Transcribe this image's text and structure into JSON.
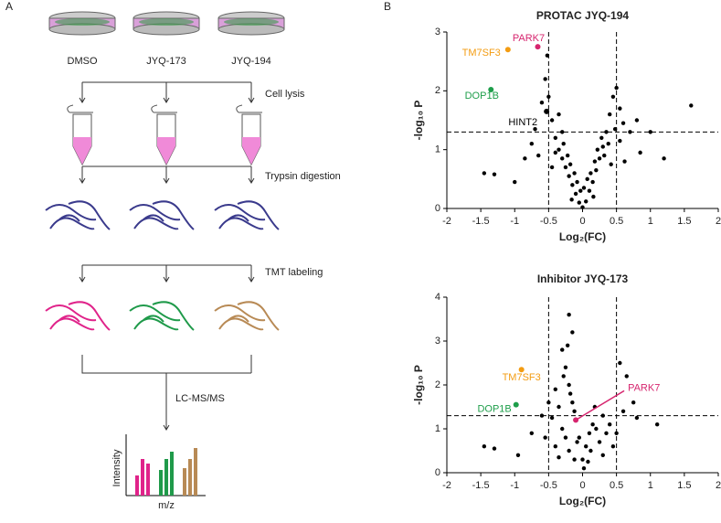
{
  "panel_labels": [
    "A",
    "B"
  ],
  "workflow": {
    "treatments": [
      "DMSO",
      "JYQ-173",
      "JYQ-194"
    ],
    "steps": [
      "Cell lysis",
      "Trypsin digestion",
      "TMT labeling",
      "LC-MS/MS"
    ],
    "axis_labels": [
      "Intensity",
      "m/z"
    ]
  },
  "chart_data": [
    {
      "type": "scatter",
      "title": "PROTAC JYQ-194",
      "x_label": "Log₂(FC)",
      "y_label": "-log₁₀ P",
      "color": "#000000",
      "x": [
        -1.45,
        -1.3,
        -1.0,
        -0.85,
        -0.6,
        -0.55,
        -0.5,
        -0.45,
        -0.4,
        -0.35,
        -0.3,
        -0.25,
        -0.2,
        -0.15,
        -0.1,
        -0.05,
        0,
        0.05,
        0.1,
        0.15,
        0.2,
        0.25,
        0.3,
        0.35,
        0.4,
        0.45,
        0.5,
        0.55,
        0.6,
        0.7,
        0.8,
        1.0,
        1.2,
        1.6,
        0.85,
        -0.7,
        -0.75,
        -0.65,
        -0.35,
        -0.3,
        -0.28,
        -0.22,
        -0.18,
        -0.12,
        -0.08,
        -0.03,
        0.02,
        0.07,
        0.12,
        0.18,
        0.22,
        0.28,
        0.32,
        0.38,
        0.42,
        0.16,
        -0.16,
        0.55,
        -0.45,
        -0.52,
        0.48,
        0.62,
        -0.4
      ],
      "values": [
        0.6,
        0.58,
        0.45,
        0.85,
        1.8,
        2.2,
        1.9,
        1.5,
        1.2,
        1.0,
        0.85,
        0.7,
        0.55,
        0.4,
        0.25,
        0.1,
        0.02,
        0.12,
        0.3,
        0.45,
        0.65,
        0.85,
        1.05,
        1.3,
        1.6,
        1.9,
        2.05,
        1.7,
        1.45,
        1.3,
        1.5,
        1.3,
        0.85,
        1.75,
        0.95,
        1.35,
        1.1,
        0.9,
        1.6,
        1.3,
        1.1,
        0.9,
        0.75,
        0.6,
        0.45,
        0.3,
        0.35,
        0.5,
        0.6,
        0.8,
        1.0,
        1.2,
        0.9,
        1.1,
        0.75,
        0.2,
        0.15,
        1.15,
        0.7,
        2.6,
        1.35,
        0.8,
        0.95
      ],
      "xlim": [
        -2,
        2
      ],
      "xticks": [
        -2,
        -1.5,
        -1,
        -0.5,
        0,
        0.5,
        1,
        1.5,
        2
      ],
      "ylim": [
        0,
        3
      ],
      "yticks": [
        0,
        1,
        2,
        3
      ],
      "thresholds": {
        "x": [
          -0.5,
          0.5
        ],
        "y": 1.3
      },
      "annotations": [
        {
          "text": "PARK7",
          "x": -0.66,
          "y": 2.75,
          "color": "#d6246e"
        },
        {
          "text": "TM7SF3",
          "x": -1.1,
          "y": 2.7,
          "color": "#f39c12"
        },
        {
          "text": "DOP1B",
          "x": -1.35,
          "y": 2.02,
          "color": "#1e9e4a"
        },
        {
          "text": "HINT2",
          "x": -0.53,
          "y": 1.65,
          "color": "#000000"
        }
      ]
    },
    {
      "type": "scatter",
      "title": "Inhibitor JYQ-173",
      "x_label": "Log₂(FC)",
      "y_label": "-log₁₀ P",
      "color": "#000000",
      "x": [
        -0.2,
        -0.15,
        -0.3,
        -0.25,
        -0.2,
        -0.15,
        -0.1,
        -0.05,
        0,
        0.05,
        0.1,
        0.15,
        0.2,
        0.3,
        0.4,
        0.5,
        0.6,
        0.65,
        0.75,
        0.8,
        1.1,
        -1.45,
        -1.3,
        -0.95,
        -0.75,
        -0.6,
        -0.5,
        -0.45,
        -0.4,
        -0.35,
        -0.3,
        -0.25,
        -0.2,
        -0.12,
        0.02,
        0.08,
        0.12,
        0.25,
        0.35,
        0.45,
        -0.4,
        -0.55,
        -0.22,
        -0.28,
        -0.18,
        -0.12,
        0.18,
        0.55,
        -0.35,
        0.3,
        -0.08
      ],
      "values": [
        3.6,
        3.2,
        2.8,
        2.4,
        2.0,
        1.6,
        1.2,
        0.8,
        0.3,
        0.6,
        0.9,
        1.1,
        1.0,
        1.3,
        1.1,
        0.9,
        1.4,
        2.2,
        1.6,
        1.25,
        1.1,
        0.6,
        0.55,
        0.4,
        0.9,
        1.3,
        1.6,
        1.25,
        1.9,
        1.5,
        1.0,
        0.8,
        0.5,
        0.3,
        0.1,
        0.25,
        0.5,
        0.7,
        0.9,
        0.6,
        0.6,
        0.8,
        2.9,
        2.2,
        1.8,
        1.4,
        1.5,
        2.5,
        0.35,
        0.4,
        0.7
      ],
      "xlim": [
        -2,
        2
      ],
      "xticks": [
        -2,
        -1.5,
        -1,
        -0.5,
        0,
        0.5,
        1,
        1.5,
        2
      ],
      "ylim": [
        0,
        4
      ],
      "yticks": [
        0,
        1,
        2,
        3,
        4
      ],
      "thresholds": {
        "x": [
          -0.5,
          0.5
        ],
        "y": 1.3
      },
      "annotations": [
        {
          "text": "TM7SF3",
          "x": -0.9,
          "y": 2.35,
          "color": "#f39c12"
        },
        {
          "text": "DOP1B",
          "x": -0.98,
          "y": 1.55,
          "color": "#1e9e4a"
        },
        {
          "text": "PARK7",
          "x": -0.1,
          "y": 1.2,
          "color": "#d6246e"
        }
      ]
    }
  ]
}
